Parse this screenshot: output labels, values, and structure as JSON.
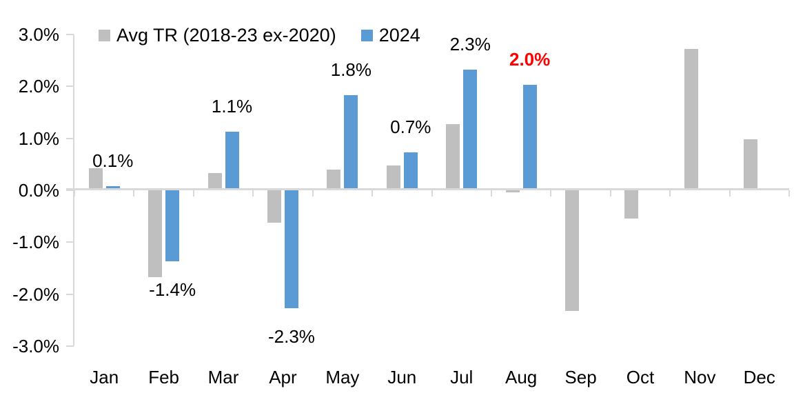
{
  "chart_data": {
    "type": "bar",
    "title": "",
    "categories": [
      "Jan",
      "Feb",
      "Mar",
      "Apr",
      "May",
      "Jun",
      "Jul",
      "Aug",
      "Sep",
      "Oct",
      "Nov",
      "Dec"
    ],
    "series": [
      {
        "name": "Avg TR (2018-23 ex-2020)",
        "color": "#bfbfbf",
        "values": [
          0.4,
          -1.7,
          0.3,
          -0.65,
          0.37,
          0.45,
          1.25,
          -0.07,
          -2.35,
          -0.57,
          2.7,
          0.96
        ]
      },
      {
        "name": "2024",
        "color": "#5b9bd5",
        "values": [
          0.05,
          -1.4,
          1.1,
          -2.3,
          1.8,
          0.7,
          2.3,
          2.0,
          null,
          null,
          null,
          null
        ]
      }
    ],
    "data_labels": [
      {
        "category": "Jan",
        "text": "0.1%",
        "color": "#000000",
        "bold": false
      },
      {
        "category": "Feb",
        "text": "-1.4%",
        "color": "#000000",
        "bold": false
      },
      {
        "category": "Mar",
        "text": "1.1%",
        "color": "#000000",
        "bold": false
      },
      {
        "category": "Apr",
        "text": "-2.3%",
        "color": "#000000",
        "bold": false
      },
      {
        "category": "May",
        "text": "1.8%",
        "color": "#000000",
        "bold": false
      },
      {
        "category": "Jun",
        "text": "0.7%",
        "color": "#000000",
        "bold": false
      },
      {
        "category": "Jul",
        "text": "2.3%",
        "color": "#000000",
        "bold": false
      },
      {
        "category": "Aug",
        "text": "2.0%",
        "color": "#ff0000",
        "bold": true
      }
    ],
    "y_axis": {
      "tick_labels": [
        "3.0%",
        "2.0%",
        "1.0%",
        "0.0%",
        "-1.0%",
        "-2.0%",
        "-3.0%"
      ],
      "tick_values": [
        3,
        2,
        1,
        0,
        -1,
        -2,
        -3
      ],
      "min": -3,
      "max": 3
    },
    "legend_position": "top",
    "grid": false,
    "axis_color": "#d9d9d9",
    "xlabel": "",
    "ylabel": ""
  }
}
